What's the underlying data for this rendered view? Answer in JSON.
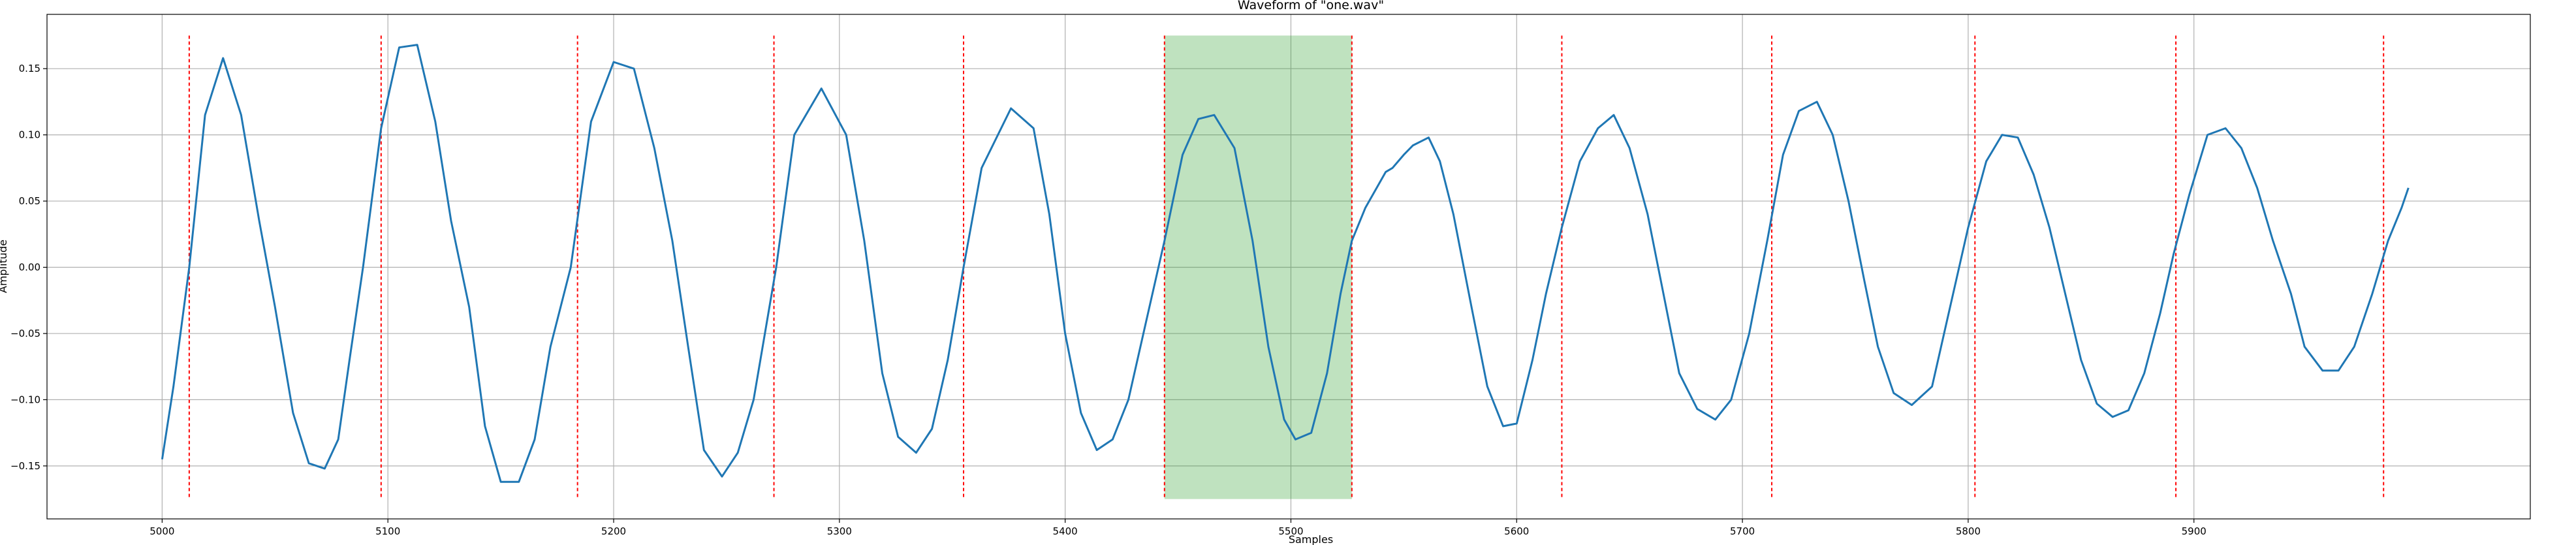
{
  "chart_data": {
    "type": "line",
    "title": "Waveform of \"one.wav\"",
    "xlabel": "Samples",
    "ylabel": "Amplitude",
    "xlim": [
      4949,
      6049
    ],
    "ylim": [
      -0.19,
      0.191
    ],
    "grid": true,
    "xticks": [
      5000,
      5100,
      5200,
      5300,
      5400,
      5500,
      5600,
      5700,
      5800,
      5900
    ],
    "xtick_labels": [
      "5000",
      "5100",
      "5200",
      "5300",
      "5400",
      "5500",
      "5600",
      "5700",
      "5800",
      "5900"
    ],
    "yticks": [
      -0.15,
      -0.1,
      -0.05,
      0.0,
      0.05,
      0.1,
      0.15
    ],
    "ytick_labels": [
      "−0.15",
      "−0.10",
      "−0.05",
      "0.00",
      "0.05",
      "0.10",
      "0.15"
    ],
    "series": [
      {
        "color": "#1f77b4",
        "x": [
          5000,
          5005,
          5012,
          5019,
          5027,
          5035,
          5043,
          5050,
          5058,
          5065,
          5072,
          5078,
          5083,
          5089,
          5097,
          5105,
          5113,
          5121,
          5128,
          5136,
          5143,
          5150,
          5158,
          5165,
          5172,
          5181,
          5190,
          5200,
          5209,
          5218,
          5226,
          5233,
          5240,
          5248,
          5255,
          5262,
          5272,
          5280,
          5292,
          5303,
          5311,
          5319,
          5326,
          5334,
          5341,
          5348,
          5355,
          5363,
          5376,
          5386,
          5393,
          5400,
          5407,
          5414,
          5421,
          5428,
          5436,
          5444,
          5452,
          5459,
          5466,
          5475,
          5483,
          5490,
          5497,
          5502,
          5509,
          5516,
          5522,
          5527,
          5533,
          5538,
          5542,
          5545,
          5550,
          5554,
          5561,
          5566,
          5572,
          5580,
          5587,
          5594,
          5600,
          5607,
          5613,
          5620,
          5628,
          5636,
          5643,
          5650,
          5658,
          5665,
          5672,
          5680,
          5688,
          5695,
          5703,
          5711,
          5718,
          5725,
          5733,
          5740,
          5747,
          5754,
          5760,
          5767,
          5775,
          5784,
          5792,
          5800,
          5808,
          5815,
          5822,
          5829,
          5836,
          5843,
          5850,
          5857,
          5864,
          5871,
          5878,
          5885,
          5891,
          5898,
          5906,
          5914,
          5921,
          5928,
          5935,
          5943,
          5949,
          5957,
          5964,
          5971,
          5979,
          5986,
          5992,
          5995
        ],
        "y": [
          -0.145,
          -0.09,
          0.0,
          0.115,
          0.158,
          0.115,
          0.035,
          -0.03,
          -0.11,
          -0.148,
          -0.152,
          -0.13,
          -0.07,
          0.0,
          0.105,
          0.166,
          0.168,
          0.11,
          0.035,
          -0.03,
          -0.12,
          -0.162,
          -0.162,
          -0.13,
          -0.06,
          0.0,
          0.11,
          0.155,
          0.15,
          0.09,
          0.02,
          -0.06,
          -0.138,
          -0.158,
          -0.14,
          -0.1,
          0.0,
          0.1,
          0.135,
          0.1,
          0.02,
          -0.08,
          -0.128,
          -0.14,
          -0.122,
          -0.07,
          0.0,
          0.075,
          0.12,
          0.105,
          0.04,
          -0.05,
          -0.11,
          -0.138,
          -0.13,
          -0.1,
          -0.04,
          0.02,
          0.085,
          0.112,
          0.115,
          0.09,
          0.02,
          -0.06,
          -0.115,
          -0.13,
          -0.125,
          -0.08,
          -0.02,
          0.02,
          0.045,
          0.06,
          0.072,
          0.075,
          0.085,
          0.092,
          0.098,
          0.08,
          0.04,
          -0.03,
          -0.09,
          -0.12,
          -0.118,
          -0.07,
          -0.02,
          0.03,
          0.08,
          0.105,
          0.115,
          0.09,
          0.04,
          -0.02,
          -0.08,
          -0.107,
          -0.115,
          -0.1,
          -0.05,
          0.02,
          0.085,
          0.118,
          0.125,
          0.1,
          0.05,
          -0.01,
          -0.06,
          -0.095,
          -0.104,
          -0.09,
          -0.03,
          0.03,
          0.08,
          0.1,
          0.098,
          0.07,
          0.03,
          -0.02,
          -0.07,
          -0.103,
          -0.113,
          -0.108,
          -0.08,
          -0.035,
          0.01,
          0.055,
          0.1,
          0.105,
          0.09,
          0.06,
          0.02,
          -0.02,
          -0.06,
          -0.078,
          -0.078,
          -0.06,
          -0.02,
          0.02,
          0.045,
          0.06
        ]
      }
    ],
    "vlines": [
      5012,
      5097,
      5184,
      5271,
      5355,
      5444,
      5527,
      5620,
      5713,
      5803,
      5892,
      5984
    ],
    "vline_range": [
      -0.175,
      0.175
    ],
    "vline_color": "#ff0000",
    "span": {
      "x_start": 5444,
      "x_end": 5527,
      "y_start": -0.175,
      "y_end": 0.175,
      "color": "#2ca02c",
      "opacity": 0.3
    }
  }
}
